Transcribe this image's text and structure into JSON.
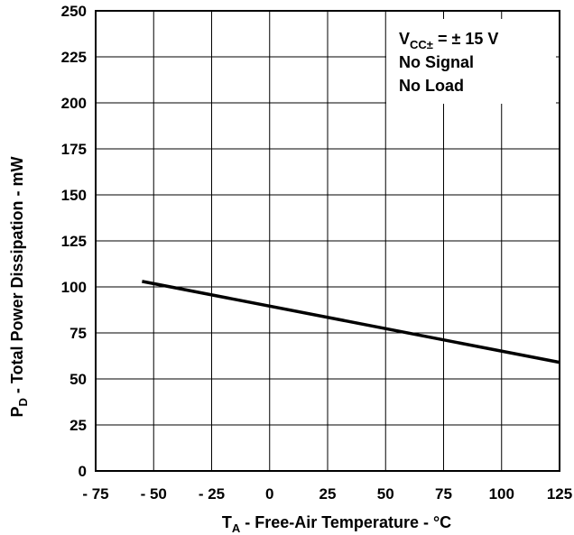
{
  "chart_data": {
    "type": "line",
    "title": "",
    "xlabel": {
      "symbol": "T",
      "subscript": "A",
      "text": " - Free-Air Temperature - °C"
    },
    "ylabel": {
      "symbol": "P",
      "subscript": "D",
      "text": " - Total Power Dissipation - mW"
    },
    "xlim": [
      -75,
      125
    ],
    "ylim": [
      0,
      250
    ],
    "grid": true,
    "x_ticks": [
      {
        "value": -75,
        "label": "- 75"
      },
      {
        "value": -50,
        "label": "- 50"
      },
      {
        "value": -25,
        "label": "- 25"
      },
      {
        "value": 0,
        "label": "0"
      },
      {
        "value": 25,
        "label": "25"
      },
      {
        "value": 50,
        "label": "50"
      },
      {
        "value": 75,
        "label": "75"
      },
      {
        "value": 100,
        "label": "100"
      },
      {
        "value": 125,
        "label": "125"
      }
    ],
    "y_ticks": [
      {
        "value": 0,
        "label": "0"
      },
      {
        "value": 25,
        "label": "25"
      },
      {
        "value": 50,
        "label": "50"
      },
      {
        "value": 75,
        "label": "75"
      },
      {
        "value": 100,
        "label": "100"
      },
      {
        "value": 125,
        "label": "125"
      },
      {
        "value": 150,
        "label": "150"
      },
      {
        "value": 175,
        "label": "175"
      },
      {
        "value": 200,
        "label": "200"
      },
      {
        "value": 225,
        "label": "225"
      },
      {
        "value": 250,
        "label": "250"
      }
    ],
    "series": [
      {
        "x": [
          -55,
          125
        ],
        "y": [
          103,
          59
        ]
      }
    ],
    "annotation": {
      "placement": "top-right",
      "lines": [
        {
          "symbol": "V",
          "subscript": "CC±",
          "text": " = ± 15 V"
        },
        {
          "text": "No Signal"
        },
        {
          "text": "No Load"
        }
      ]
    }
  }
}
